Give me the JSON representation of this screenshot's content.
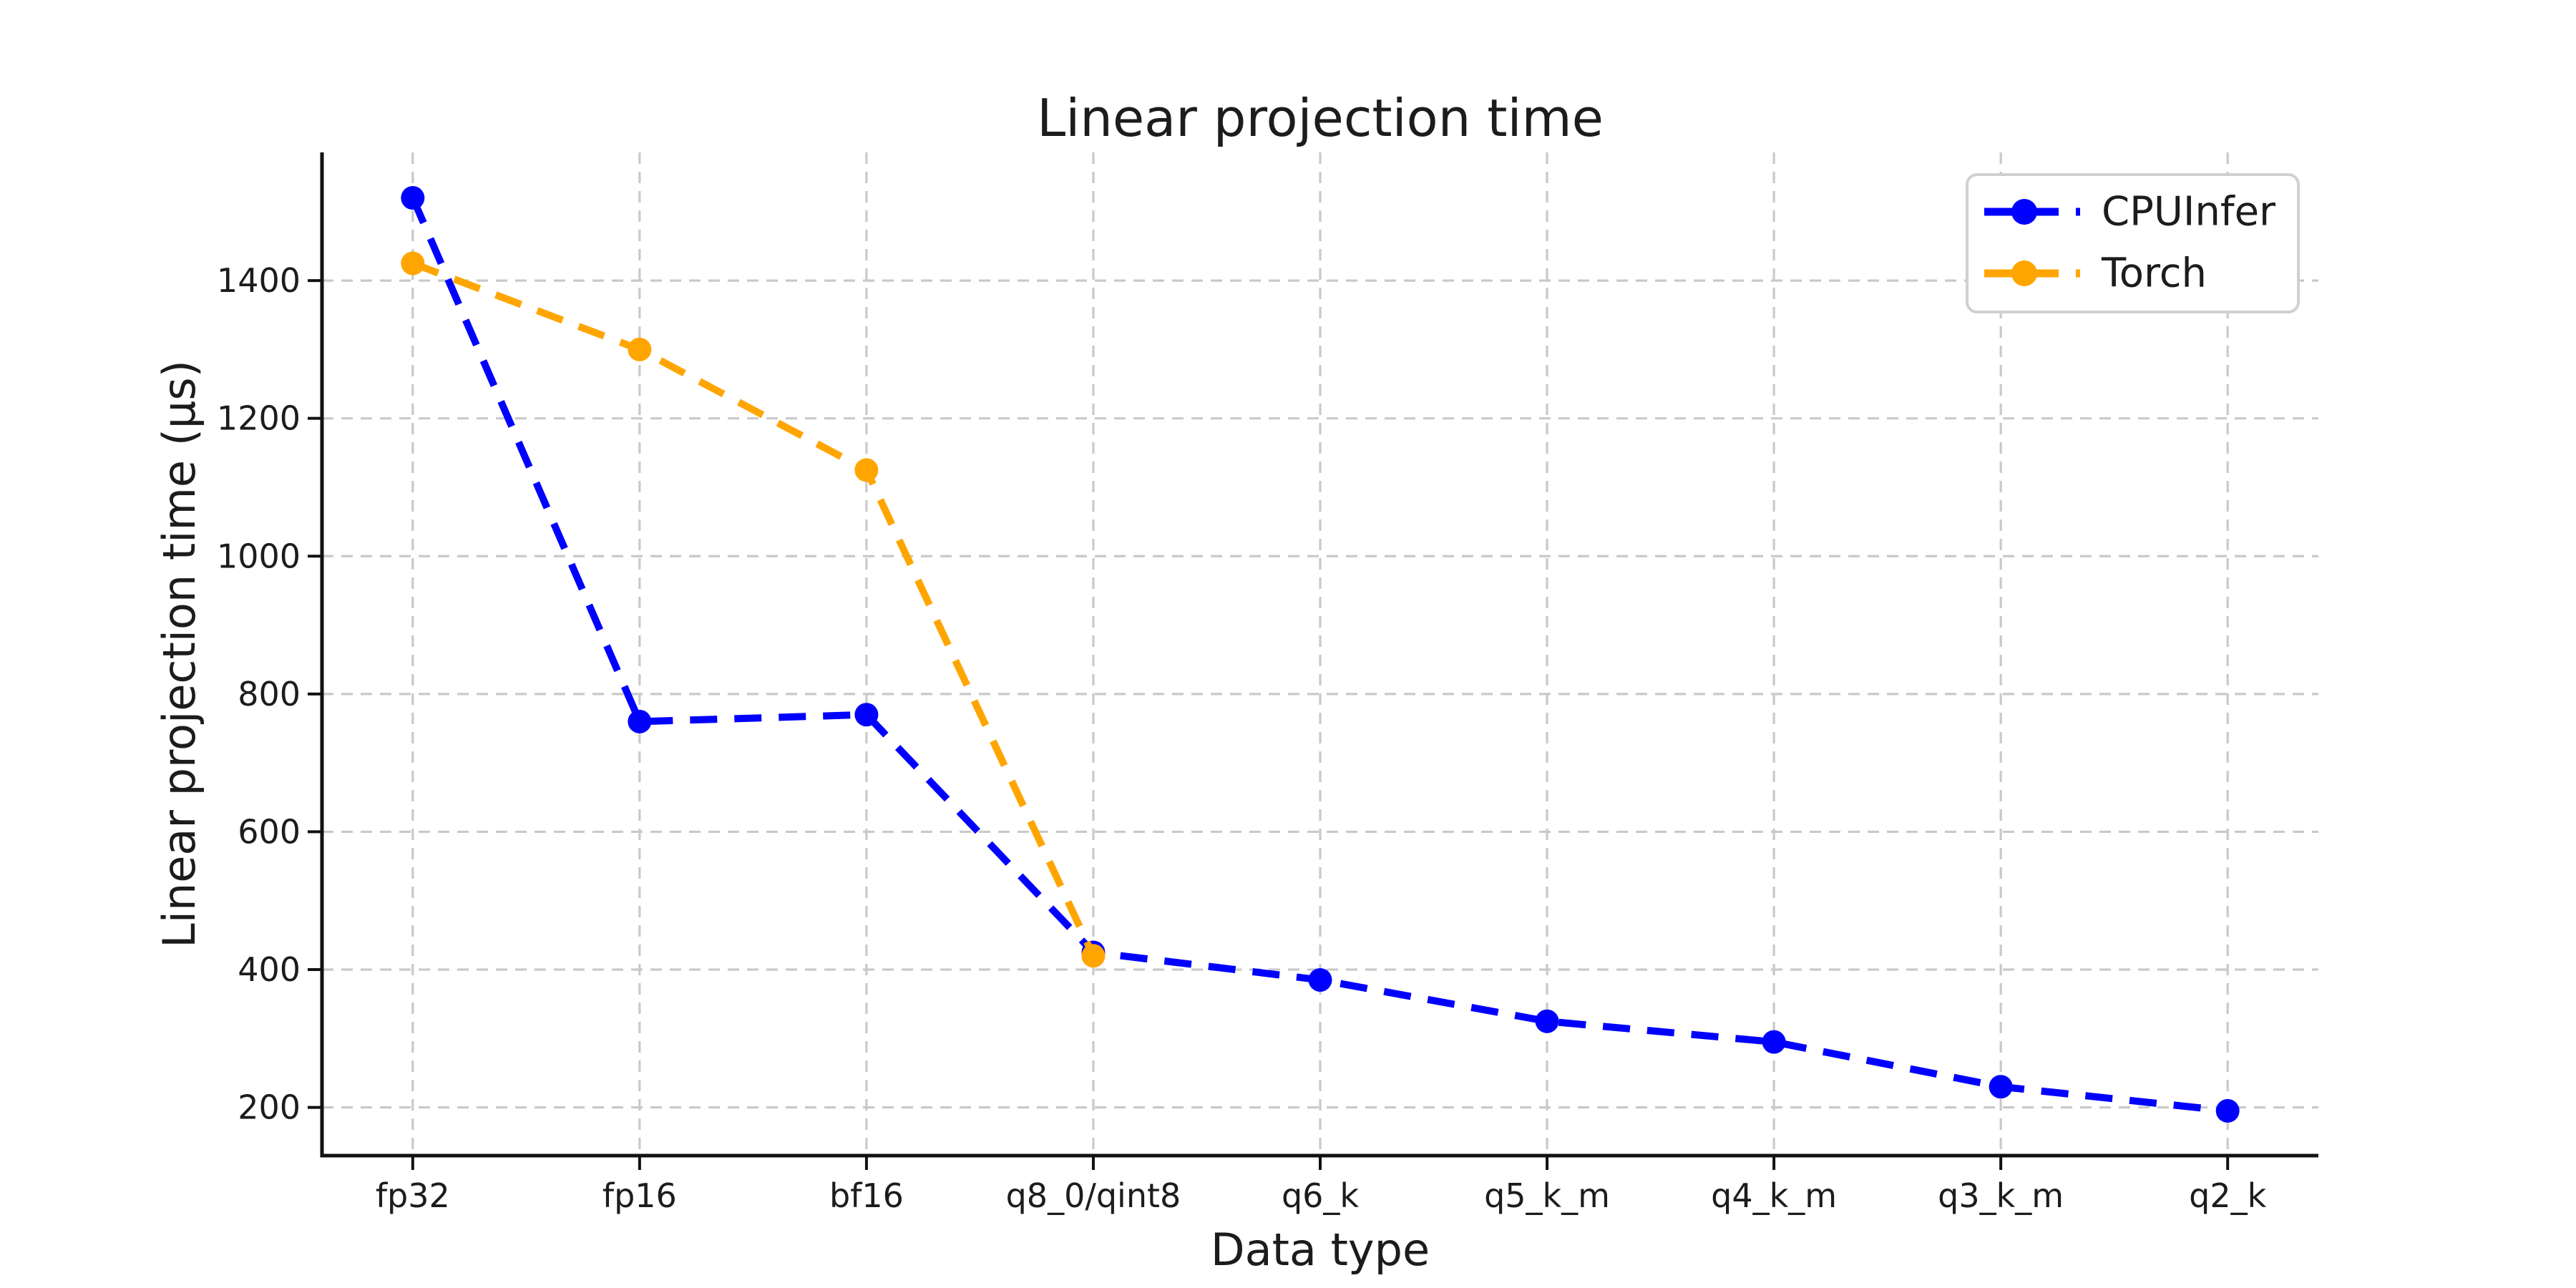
{
  "chart_data": {
    "type": "line",
    "title": "Linear projection time",
    "xlabel": "Data type",
    "ylabel": "Linear projection time (µs)",
    "categories": [
      "fp32",
      "fp16",
      "bf16",
      "q8_0/qint8",
      "q6_k",
      "q5_k_m",
      "q4_k_m",
      "q3_k_m",
      "q2_k"
    ],
    "series": [
      {
        "name": "CPUInfer",
        "color": "#0000ff",
        "values": [
          1520,
          760,
          770,
          425,
          385,
          325,
          295,
          230,
          195
        ]
      },
      {
        "name": "Torch",
        "color": "#ffa500",
        "values": [
          1425,
          1300,
          1125,
          420
        ]
      }
    ],
    "y_ticks": [
      200,
      400,
      600,
      800,
      1000,
      1200,
      1400
    ],
    "ylim": [
      130,
      1586
    ],
    "grid": true,
    "grid_style": "dashed",
    "line_style": "dashed",
    "marker": "circle",
    "legend_position": "upper right",
    "colors": {
      "grid": "#c9c9c9",
      "spine": "#111111",
      "text": "#1c1c1c",
      "legend_border": "#d0d0d0",
      "background": "#ffffff"
    }
  }
}
